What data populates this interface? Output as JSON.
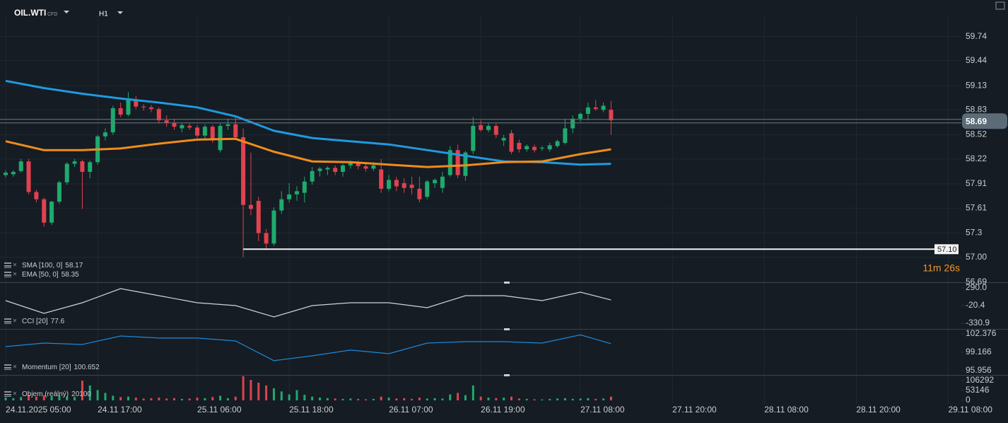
{
  "chart_data": [
    {
      "type": "candlestick",
      "title": "OIL.WTI",
      "instrument_type": "CFD",
      "timeframe": "H1",
      "up_color": "#1faa6e",
      "down_color": "#e0424f",
      "xlim": [
        -0.74,
        130.8
      ],
      "xticks": [
        {
          "value": 0,
          "label": "24.11.2025 05:00"
        },
        {
          "value": 12,
          "label": "24.11 17:00"
        },
        {
          "value": 25,
          "label": "25.11 06:00"
        },
        {
          "value": 37,
          "label": "25.11 18:00"
        },
        {
          "value": 50,
          "label": "26.11 07:00"
        },
        {
          "value": 62,
          "label": "26.11 19:00"
        },
        {
          "value": 75,
          "label": "27.11 08:00"
        },
        {
          "value": 87,
          "label": "27.11 20:00"
        },
        {
          "value": 99,
          "label": "28.11 08:00"
        },
        {
          "value": 111,
          "label": "28.11 20:00"
        },
        {
          "value": 123,
          "label": "29.11 08:00"
        }
      ],
      "ylim": [
        56.69,
        60.0
      ],
      "yticks": [
        59.74,
        59.44,
        59.13,
        58.83,
        58.52,
        58.22,
        57.91,
        57.61,
        57.3,
        {
          "value": 57,
          "label": "57.00"
        },
        56.69
      ],
      "ohlc": [
        [
          58.02,
          58.08,
          57.99,
          58.05
        ],
        [
          58.03,
          58.08,
          58.0,
          58.06
        ],
        [
          58.07,
          58.22,
          58.05,
          58.19
        ],
        [
          58.19,
          58.22,
          57.78,
          57.81
        ],
        [
          57.81,
          57.84,
          57.68,
          57.72
        ],
        [
          57.72,
          57.74,
          57.38,
          57.43
        ],
        [
          57.43,
          57.7,
          57.4,
          57.69
        ],
        [
          57.69,
          57.95,
          57.66,
          57.93
        ],
        [
          57.93,
          58.18,
          57.9,
          58.16
        ],
        [
          58.16,
          58.22,
          58.12,
          58.19
        ],
        [
          58.19,
          58.21,
          57.6,
          58.06
        ],
        [
          58.06,
          58.2,
          57.98,
          58.18
        ],
        [
          58.18,
          58.52,
          58.15,
          58.5
        ],
        [
          58.5,
          58.6,
          58.45,
          58.55
        ],
        [
          58.55,
          58.88,
          58.52,
          58.85
        ],
        [
          58.85,
          58.92,
          58.74,
          58.77
        ],
        [
          58.77,
          59.05,
          58.75,
          58.96
        ],
        [
          58.96,
          59.0,
          58.84,
          58.87
        ],
        [
          58.87,
          58.9,
          58.82,
          58.86
        ],
        [
          58.86,
          58.89,
          58.8,
          58.84
        ],
        [
          58.84,
          58.86,
          58.66,
          58.7
        ],
        [
          58.7,
          58.76,
          58.62,
          58.67
        ],
        [
          58.67,
          58.72,
          58.58,
          58.62
        ],
        [
          58.6,
          58.66,
          58.55,
          58.64
        ],
        [
          58.63,
          58.66,
          58.58,
          58.61
        ],
        [
          58.61,
          58.64,
          58.48,
          58.51
        ],
        [
          58.51,
          58.65,
          58.46,
          58.62
        ],
        [
          58.62,
          58.64,
          58.42,
          58.46
        ],
        [
          58.33,
          58.66,
          58.3,
          58.63
        ],
        [
          58.63,
          58.72,
          58.58,
          58.65
        ],
        [
          58.65,
          58.74,
          58.46,
          58.49
        ],
        [
          58.49,
          58.6,
          57.0,
          57.65
        ],
        [
          57.65,
          58.3,
          57.52,
          57.6
        ],
        [
          57.7,
          57.75,
          57.2,
          57.3
        ],
        [
          57.3,
          57.35,
          57.1,
          57.17
        ],
        [
          57.17,
          57.62,
          57.14,
          57.58
        ],
        [
          57.58,
          57.82,
          57.54,
          57.72
        ],
        [
          57.72,
          57.92,
          57.68,
          57.78
        ],
        [
          57.78,
          57.88,
          57.7,
          57.82
        ],
        [
          57.8,
          58.0,
          57.68,
          57.94
        ],
        [
          57.94,
          58.12,
          57.9,
          58.07
        ],
        [
          58.07,
          58.12,
          58.0,
          58.1
        ],
        [
          58.09,
          58.13,
          58.02,
          58.11
        ],
        [
          58.11,
          58.14,
          58.02,
          58.06
        ],
        [
          58.06,
          58.16,
          58.0,
          58.14
        ],
        [
          58.14,
          58.2,
          58.1,
          58.17
        ],
        [
          58.17,
          58.2,
          58.09,
          58.13
        ],
        [
          58.13,
          58.16,
          58.06,
          58.1
        ],
        [
          58.1,
          58.18,
          58.07,
          58.14
        ],
        [
          58.09,
          58.22,
          57.8,
          57.85
        ],
        [
          57.85,
          58.02,
          57.82,
          57.96
        ],
        [
          57.96,
          58.0,
          57.82,
          57.88
        ],
        [
          57.92,
          57.98,
          57.8,
          57.86
        ],
        [
          57.9,
          58.0,
          57.78,
          57.86
        ],
        [
          57.85,
          58.0,
          57.68,
          57.72
        ],
        [
          57.75,
          57.96,
          57.72,
          57.94
        ],
        [
          57.92,
          57.98,
          57.86,
          57.96
        ],
        [
          57.86,
          58.06,
          57.8,
          58.0
        ],
        [
          58.02,
          58.38,
          58.0,
          58.33
        ],
        [
          58.33,
          58.4,
          57.98,
          58.02
        ],
        [
          58.01,
          58.32,
          57.95,
          58.3
        ],
        [
          58.32,
          58.74,
          58.28,
          58.63
        ],
        [
          58.64,
          58.7,
          58.56,
          58.58
        ],
        [
          58.58,
          58.66,
          58.55,
          58.63
        ],
        [
          58.63,
          58.66,
          58.48,
          58.52
        ],
        [
          58.45,
          58.52,
          58.38,
          58.48
        ],
        [
          58.54,
          58.58,
          58.28,
          58.31
        ],
        [
          58.42,
          58.46,
          58.3,
          58.34
        ],
        [
          58.34,
          58.4,
          58.31,
          58.38
        ],
        [
          58.37,
          58.4,
          58.3,
          58.33
        ],
        [
          58.35,
          58.38,
          58.32,
          58.36
        ],
        [
          58.34,
          58.42,
          58.31,
          58.39
        ],
        [
          58.38,
          58.46,
          58.36,
          58.44
        ],
        [
          58.42,
          58.72,
          58.4,
          58.6
        ],
        [
          58.6,
          58.76,
          58.54,
          58.72
        ],
        [
          58.72,
          58.8,
          58.68,
          58.78
        ],
        [
          58.78,
          58.92,
          58.7,
          58.86
        ],
        [
          58.86,
          58.95,
          58.82,
          58.84
        ],
        [
          58.83,
          58.92,
          58.8,
          58.88
        ],
        [
          58.83,
          58.94,
          58.52,
          58.7
        ]
      ],
      "overlays": [
        {
          "name": "SMA [100, 0]",
          "value": 58.17,
          "color": "#1e9be0",
          "x": [
            0,
            5,
            10,
            15,
            20,
            25,
            30,
            35,
            40,
            45,
            50,
            55,
            60,
            65,
            70,
            75,
            79
          ],
          "values": [
            59.19,
            59.1,
            59.03,
            58.97,
            58.92,
            58.86,
            58.75,
            58.57,
            58.48,
            58.44,
            58.4,
            58.33,
            58.26,
            58.19,
            58.18,
            58.15,
            58.16
          ]
        },
        {
          "name": "EMA [50, 0]",
          "value": 58.35,
          "color": "#f08c1a",
          "x": [
            0,
            5,
            10,
            15,
            20,
            25,
            30,
            35,
            40,
            45,
            50,
            55,
            60,
            65,
            70,
            75,
            79
          ],
          "values": [
            58.44,
            58.33,
            58.33,
            58.35,
            58.41,
            58.46,
            58.47,
            58.31,
            58.19,
            58.18,
            58.15,
            58.12,
            58.14,
            58.18,
            58.19,
            58.28,
            58.34
          ]
        }
      ],
      "last_price": 58.69,
      "level": {
        "value": 57.1,
        "label": "57.10"
      },
      "countdown": "11m 26s"
    },
    {
      "type": "line",
      "name": "CCI [20]",
      "value": 77.6,
      "color": "#d0d4d8",
      "x": [
        0,
        5,
        10,
        15,
        20,
        25,
        30,
        35,
        40,
        45,
        50,
        55,
        60,
        65,
        70,
        75,
        79
      ],
      "values": [
        66,
        -157,
        29,
        278,
        153,
        29,
        -20,
        -219,
        -20,
        29,
        29,
        -58,
        153,
        153,
        66,
        215,
        77.6
      ],
      "ylim": [
        -405.4,
        364.5
      ],
      "yticks": [
        {
          "value": 290,
          "label": "290.0"
        },
        -20.4,
        -330.9
      ]
    },
    {
      "type": "line",
      "name": "Momentum [20]",
      "value": 100.652,
      "color": "#1e88d8",
      "x": [
        0,
        5,
        10,
        15,
        20,
        25,
        30,
        35,
        40,
        45,
        50,
        55,
        60,
        65,
        70,
        75,
        79
      ],
      "values": [
        100.15,
        100.77,
        100.52,
        102.0,
        101.64,
        101.64,
        101.14,
        97.69,
        98.55,
        99.54,
        98.92,
        100.77,
        101.02,
        101.02,
        100.77,
        102.2,
        100.652
      ],
      "ylim": [
        95.46,
        102.99
      ],
      "yticks": [
        102.376,
        99.166,
        95.956
      ]
    },
    {
      "type": "bar",
      "name": "Objem (reálný)",
      "value": 20100,
      "values": [
        15000,
        12000,
        18000,
        30000,
        20000,
        28000,
        22000,
        25000,
        20000,
        18000,
        106000,
        80000,
        55000,
        40000,
        25000,
        18000,
        20000,
        15000,
        10000,
        12000,
        15000,
        10000,
        12000,
        8000,
        10000,
        15000,
        12000,
        18000,
        25000,
        12000,
        20000,
        130000,
        110000,
        95000,
        80000,
        65000,
        48000,
        32000,
        55000,
        30000,
        20000,
        15000,
        12000,
        10000,
        8000,
        10000,
        8000,
        6000,
        8000,
        20000,
        15000,
        10000,
        12000,
        8000,
        15000,
        10000,
        12000,
        10000,
        32000,
        40000,
        28000,
        80000,
        20000,
        15000,
        12000,
        15000,
        20000,
        10000,
        8000,
        6000,
        5000,
        8000,
        10000,
        12000,
        8000,
        10000,
        12000,
        8000,
        10000,
        20100
      ],
      "ylim": [
        0,
        136700
      ],
      "yticks": [
        106292,
        53146,
        0
      ]
    }
  ]
}
